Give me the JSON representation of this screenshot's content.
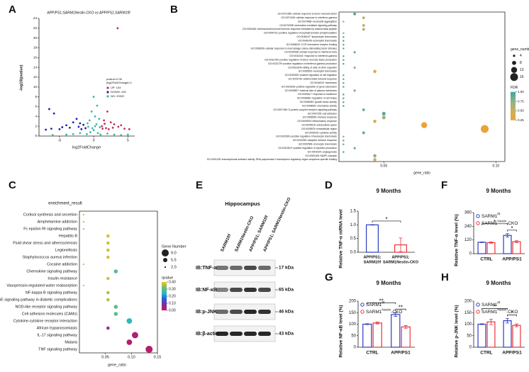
{
  "chart_data": [
    {
      "panel_label": "A",
      "type": "scatter",
      "title": "APP/PS1;SARM1Nestin-CKO vs APP/PS1;SARM1f/f",
      "x_label": "log2FoldChange",
      "y_label": "-log10(pvalue)",
      "xlim": [
        -8,
        6
      ],
      "ylim": [
        0,
        24
      ],
      "xticks": [
        -5,
        0,
        5
      ],
      "yticks": [
        0,
        2,
        4,
        6,
        8,
        10,
        12,
        14,
        16,
        18,
        20,
        22,
        24
      ],
      "legend_title": [
        "pvalue<0.05",
        "|log2FoldChange|>1"
      ],
      "series": [
        {
          "name": "UP: 134",
          "color": "#c2305c",
          "x": [
            3.5,
            2,
            1.5,
            2.5,
            3,
            4,
            1.2,
            1.8,
            2.2,
            3.6,
            4.5,
            5.2,
            1.3,
            2.8,
            1.6
          ],
          "y": [
            22,
            5,
            3.2,
            2.8,
            2.4,
            2.2,
            2,
            1.6,
            1.4,
            1.9,
            1.5,
            1.4,
            1.5,
            1.7,
            2.5
          ]
        },
        {
          "name": "DOWN: 105",
          "color": "#2020aa",
          "x": [
            -6.5,
            -5.8,
            -2.5,
            -3,
            -2,
            -4,
            -1.5,
            -3.5,
            -5,
            -6.2,
            -1.2,
            -2.2,
            -4.6,
            -1.8,
            -7
          ],
          "y": [
            5.5,
            4.6,
            3.5,
            2.8,
            2.6,
            2.2,
            2.3,
            1.7,
            1.4,
            1.5,
            1.6,
            1.9,
            1.8,
            1.4,
            1.3
          ]
        },
        {
          "name": "NO: 20322",
          "color": "#3eb8a8",
          "x": [
            0,
            0.5,
            -0.3,
            0.2,
            0.8,
            -0.6,
            -0.9,
            0.4,
            0,
            -0.5,
            0.6,
            1,
            -1,
            2,
            -2,
            3,
            -3,
            4,
            -4,
            0.2,
            -0.2,
            0.9,
            -0.8,
            5,
            -6
          ],
          "y": [
            8,
            6.2,
            5,
            4,
            3.5,
            3.2,
            2.6,
            2.4,
            1.2,
            0.8,
            0.6,
            0.3,
            0.4,
            0.5,
            0.6,
            0.3,
            0.4,
            0.2,
            0.3,
            2,
            1.6,
            1.8,
            1.9,
            0.3,
            0.2
          ]
        }
      ]
    },
    {
      "panel_label": "B",
      "type": "dot",
      "x_label": "gene_ratio",
      "xlim": [
        0.03,
        0.104
      ],
      "xticks": [
        {
          "value": 0.05,
          "label": "0.05"
        },
        {
          "value": 0.1,
          "label": "0.10"
        }
      ],
      "categories": [
        "GO:0071356~cellular response to tumor necrosis factor",
        "GO:0071346~cellular response to interferon-gamma",
        "GO:0070488~neutrophil aggregation",
        "GO:0070098~chemokine-mediated signaling pathway",
        "GO:0061844~antimicrobial humoral immune response mediated by antimicrobial peptide",
        "GO:0050731~positive regulation of peptidyl-tyrosine phosphorylation",
        "GO:0048247~lymphocyte chemotaxis",
        "GO:0048245~eosinophil chemotaxis",
        "GO:0048020~CCR chemokine receptor binding",
        "GO:0036006~cellular response to macrophage colony-stimulating factor stimulus",
        "GO:0035458~cellular response to interferon-beta",
        "GO:0034341~response to interferon-gamma",
        "GO:0032760~positive regulation of tumor necrosis factor production",
        "GO:0032729~positive regulation of interferon-gamma production",
        "GO:0031640~killing of cells of other organism",
        "GO:0030593~neutrophil chemotaxis",
        "GO:0030335~positive regulation of cell migration",
        "GO:0019730~antimicrobial humoral response",
        "GO:0016020~membrane",
        "GO:0010628~positive regulation of gene expression",
        "GO:0009897~external side of plasma membrane",
        "GO:0009617~response to bacterium",
        "GO:0008360~regulation of cell shape",
        "GO:0008083~growth factor activity",
        "GO:0008009~chemokine activity",
        "GO:0007186~G-protein coupled receptor signaling pathway",
        "GO:0007155~cell adhesion",
        "GO:0006955~immune response",
        "GO:0006954~inflammatory response",
        "GO:0005615~extracellular space",
        "GO:0005576~extracellular region",
        "GO:0005125~cytokine activity",
        "GO:0002690~positive regulation of leukocyte chemotaxis",
        "GO:0002250~adaptive immune response",
        "GO:0002548~monocyte chemotaxis",
        "GO:0001819~positive regulation of cytokine production",
        "GO:0001525~angiogenesis",
        "GO:0000165~MAPK cascade",
        "GO:0001228~transcriptional activator activity, RNA polymerase II transcription regulatory region sequence-specific binding"
      ],
      "values": [
        0.037,
        0.041,
        0.032,
        0.041,
        0.041,
        0.032,
        0.032,
        0.032,
        0.032,
        0.032,
        0.037,
        0.032,
        0.032,
        0.032,
        0.037,
        0.046,
        0.032,
        0.032,
        0.032,
        0.032,
        0.037,
        0.032,
        0.032,
        0.032,
        0.032,
        0.041,
        0.05,
        0.05,
        0.046,
        0.068,
        0.095,
        0.041,
        0.032,
        0.032,
        0.032,
        0.037,
        0.032,
        0.046,
        0.046
      ],
      "sizes": [
        5,
        5,
        3,
        5,
        5,
        3,
        3,
        3,
        3,
        3,
        4,
        3,
        3,
        3,
        4,
        6,
        3,
        3,
        3,
        3,
        4,
        3,
        3,
        3,
        3,
        5,
        7,
        7,
        6,
        12,
        16,
        5,
        3,
        3,
        3,
        4,
        3,
        6,
        6
      ],
      "color_values": [
        0.95,
        0.55,
        0.65,
        0.55,
        0.6,
        0.6,
        0.9,
        0.9,
        0.9,
        0.9,
        0.85,
        0.9,
        0.9,
        0.9,
        0.75,
        0.35,
        0.85,
        0.85,
        0.9,
        0.9,
        0.8,
        0.9,
        0.9,
        0.9,
        0.9,
        0.85,
        0.9,
        0.65,
        0.4,
        0.2,
        0.25,
        0.9,
        0.6,
        0.9,
        0.85,
        0.85,
        0.9,
        0.8,
        0.45
      ],
      "size_legend": {
        "title": "gene_number",
        "values": [
          4,
          8,
          12,
          16
        ]
      },
      "color_legend": {
        "title": "FDR",
        "ticks": [
          {
            "value": 1,
            "label": "1.00"
          },
          {
            "value": 0.75,
            "label": "0.75"
          },
          {
            "value": 0.5,
            "label": "0.50"
          },
          {
            "value": 0.25,
            "label": "0.25"
          }
        ]
      },
      "clim": [
        0.25,
        1
      ],
      "color_scale": [
        "#eaa338",
        "#c9b060",
        "#8fb28a",
        "#3aa6a0"
      ]
    },
    {
      "panel_label": "C",
      "type": "dot",
      "title": "enrichment_result",
      "x_label": "gene_ratio",
      "xlim": [
        0,
        0.15
      ],
      "xticks": [
        {
          "value": 0.05,
          "label": "0.05"
        },
        {
          "value": 0.1,
          "label": "0.10"
        },
        {
          "value": 0.15,
          "label": "0.15"
        }
      ],
      "categories": [
        "Cortisol synthesis and secretion",
        "Amphetamine addiction",
        "Fc epsilon RI signaling pathway",
        "Hepatitis B",
        "Fluid shear stress and atherosclerosis",
        "Legionellosis",
        "Staphylococcus aureus infection",
        "Cocaine addiction",
        "Chemokine signaling pathway",
        "Insulin resistance",
        "Vasopressin-regulated water reabsorption",
        "NF-kappa B signaling pathway",
        "AGE-RAGE signaling pathway in diabetic complications",
        "NOD-like receptor signaling pathway",
        "Cell adhesion molecules (CAMs)",
        "Cytokine-cytokine receptor interaction",
        "African trypanosomiasis",
        "IL-17 signaling pathway",
        "Malaria",
        "TNF signaling pathway"
      ],
      "values": [
        0.008,
        0.008,
        0.008,
        0.055,
        0.055,
        0.055,
        0.055,
        0.008,
        0.07,
        0.055,
        0.008,
        0.055,
        0.055,
        0.07,
        0.07,
        0.096,
        0.055,
        0.107,
        0.096,
        0.134
      ],
      "sizes": [
        2,
        2,
        2,
        4,
        4,
        4,
        4,
        2,
        5,
        4,
        2,
        4,
        4,
        5,
        5,
        7,
        4,
        8,
        7,
        9
      ],
      "color_values": [
        0.36,
        0.36,
        0.36,
        0.38,
        0.38,
        0.38,
        0.38,
        0.37,
        0.3,
        0.38,
        0.37,
        0.36,
        0.36,
        0.3,
        0.3,
        0.25,
        0.05,
        0.03,
        0.02,
        0.02
      ],
      "size_legend": {
        "title": "Gene Number",
        "values": [
          {
            "value": 9,
            "label": "9.0"
          },
          {
            "value": 5.5,
            "label": "5.5"
          },
          {
            "value": 2,
            "label": "2.0"
          }
        ]
      },
      "color_legend": {
        "title": "qvalue",
        "ticks": [
          {
            "value": 0.4,
            "label": "0.40"
          },
          {
            "value": 0.3,
            "label": "0.30"
          },
          {
            "value": 0.2,
            "label": "0.20"
          },
          {
            "value": 0.1,
            "label": "0.10"
          },
          {
            "value": 0,
            "label": "0.00"
          }
        ]
      },
      "clim": [
        0,
        0.4
      ],
      "color_scale": [
        "#c8185a",
        "#7a2fa0",
        "#2a5bd7",
        "#24b8c8",
        "#6cc070",
        "#f0c419"
      ]
    },
    {
      "panel_label": "D",
      "type": "bar",
      "title": "9 Months",
      "y_label": "Relative TNF-α mRNA level",
      "ylim": [
        0,
        1.5
      ],
      "yticks": [
        {
          "value": 0,
          "label": "0.0"
        },
        {
          "value": 0.5,
          "label": "0.5"
        },
        {
          "value": 1,
          "label": "1.0"
        },
        {
          "value": 1.5,
          "label": "1.5"
        }
      ],
      "categories": [
        [
          "APP/PS1;",
          "SARM1f/f"
        ],
        [
          "APP/PS1;",
          "SARM1Nestin-CKO"
        ]
      ],
      "series": [
        {
          "colors": [
            "#2b3cc4",
            "#e8343a"
          ],
          "values": [
            1,
            0.27
          ],
          "errors": [
            0.01,
            0.25
          ]
        }
      ],
      "annotations": [
        {
          "text": "*",
          "between": [
            [
              0,
              0
            ],
            [
              1,
              0
            ]
          ]
        }
      ]
    },
    {
      "panel_label": "F",
      "type": "bar",
      "title": "9 Months",
      "y_label": "Relative TNF-α level (%)",
      "ylim": [
        0,
        360
      ],
      "yticks": [
        0,
        120,
        240,
        360
      ],
      "categories": [
        "CTRL",
        "APP/PS1"
      ],
      "series": [
        {
          "name": "SARM1",
          "name_superscript": "f/f",
          "color": "#2b3cc4",
          "values": [
            100,
            160
          ],
          "errors": [
            3,
            15
          ]
        },
        {
          "name": "SARM1",
          "name_superscript": "Nestin",
          "name_suffix": "-CKO",
          "color": "#e8343a",
          "values": [
            97,
            105
          ],
          "errors": [
            5,
            8
          ]
        }
      ],
      "annotations": [
        {
          "text": "*",
          "between": [
            [
              0,
              0
            ],
            [
              1,
              0
            ]
          ]
        },
        {
          "text": "*",
          "between": [
            [
              1,
              0
            ],
            [
              1,
              1
            ]
          ]
        }
      ]
    },
    {
      "panel_label": "G",
      "type": "bar",
      "title": "9 Months",
      "y_label": "Relative NF-κB level (%)",
      "ylim": [
        0,
        200
      ],
      "yticks": [
        0,
        50,
        100,
        150,
        200
      ],
      "categories": [
        "CTRL",
        "APP/PS1"
      ],
      "series": [
        {
          "name": "SARM1",
          "name_superscript": "f/f",
          "color": "#2b3cc4",
          "values": [
            100,
            142
          ],
          "errors": [
            2,
            8
          ]
        },
        {
          "name": "SARM1",
          "name_superscript": "Nestin",
          "name_suffix": "-CKO",
          "color": "#e8343a",
          "values": [
            105,
            88
          ],
          "errors": [
            4,
            6
          ]
        }
      ],
      "annotations": [
        {
          "text": "**",
          "between": [
            [
              0,
              0
            ],
            [
              1,
              0
            ]
          ]
        },
        {
          "text": "**",
          "between": [
            [
              1,
              0
            ],
            [
              1,
              1
            ]
          ]
        }
      ]
    },
    {
      "panel_label": "H",
      "type": "bar",
      "title": "9 Months",
      "y_label": "Relative p-JNK level (%)",
      "ylim": [
        0,
        200
      ],
      "yticks": [
        0,
        50,
        100,
        150,
        200
      ],
      "categories": [
        "CTRL",
        "APP/PS1"
      ],
      "series": [
        {
          "name": "SARM1",
          "name_superscript": "f/f",
          "color": "#2b3cc4",
          "values": [
            100,
            115
          ],
          "errors": [
            2,
            10
          ]
        },
        {
          "name": "SARM1",
          "name_superscript": "Nestin",
          "name_suffix": "-CKO",
          "color": "#e8343a",
          "values": [
            110,
            95
          ],
          "errors": [
            12,
            6
          ]
        }
      ],
      "annotations": [
        {
          "text": "*",
          "between": [
            [
              0,
              0
            ],
            [
              1,
              0
            ]
          ]
        },
        {
          "text": "*",
          "between": [
            [
              1,
              0
            ],
            [
              1,
              1
            ]
          ]
        }
      ]
    }
  ],
  "blot": {
    "panel_label": "E",
    "title": "Hippocampus",
    "lanes": [
      "SARM1f/f",
      "SARM1Nestin-CKO",
      "APP/PS1; SARM1f/f",
      "APP/PS1; SARM1Nestin-CKO"
    ],
    "rows": [
      {
        "label": "IB:TNF-α",
        "size": "17 kDa"
      },
      {
        "label": "IB:NF-κB",
        "size": "65 kDa"
      },
      {
        "label": "IB:p-JNK",
        "size": "46 kDa"
      },
      {
        "label": "IB:β-actin",
        "size": "43 kDa"
      }
    ]
  }
}
